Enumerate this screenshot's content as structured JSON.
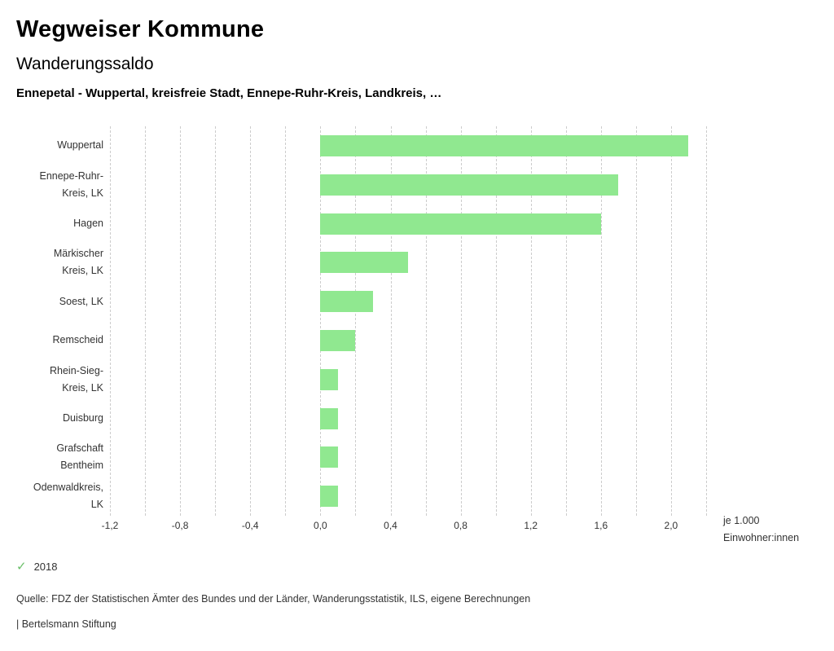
{
  "header": {
    "title": "Wegweiser Kommune",
    "subtitle": "Wanderungssaldo",
    "selection": "Ennepetal - Wuppertal, kreisfreie Stadt, Ennepe-Ruhr-Kreis, Landkreis, …"
  },
  "chart_data": {
    "type": "bar",
    "orientation": "horizontal",
    "title": "Wanderungssaldo",
    "categories": [
      "Wuppertal",
      "Ennepe-Ruhr-\nKreis, LK",
      "Hagen",
      "Märkischer\nKreis, LK",
      "Soest, LK",
      "Remscheid",
      "Rhein-Sieg-\nKreis, LK",
      "Duisburg",
      "Grafschaft\nBentheim",
      "Odenwaldkreis,\nLK"
    ],
    "values": [
      2.1,
      1.7,
      1.6,
      0.5,
      0.3,
      0.2,
      0.1,
      0.1,
      0.1,
      0.1
    ],
    "x_ticks": {
      "labels": [
        "-1,2",
        "-0,8",
        "-0,4",
        "0,0",
        "0,4",
        "0,8",
        "1,2",
        "1,6",
        "2,0"
      ],
      "values": [
        -1.2,
        -0.8,
        -0.4,
        0.0,
        0.4,
        0.8,
        1.2,
        1.6,
        2.0
      ]
    },
    "xlim": [
      -1.2,
      2.2
    ],
    "unit_label": "je 1.000\nEinwohner:innen",
    "grid": {
      "step": 0.2,
      "style": "dashed"
    },
    "legend_position": "bottom-left",
    "year": "2018"
  },
  "legend": {
    "year": "2018",
    "check_icon": "checkmark"
  },
  "footer": {
    "source": "Quelle: FDZ der Statistischen Ämter des Bundes und der Länder, Wanderungsstatistik, ILS, eigene Berechnungen",
    "branding": "| Bertelsmann Stiftung"
  },
  "colors": {
    "bar": "#90e890",
    "check": "#6abf69",
    "grid": "#cccccc"
  }
}
